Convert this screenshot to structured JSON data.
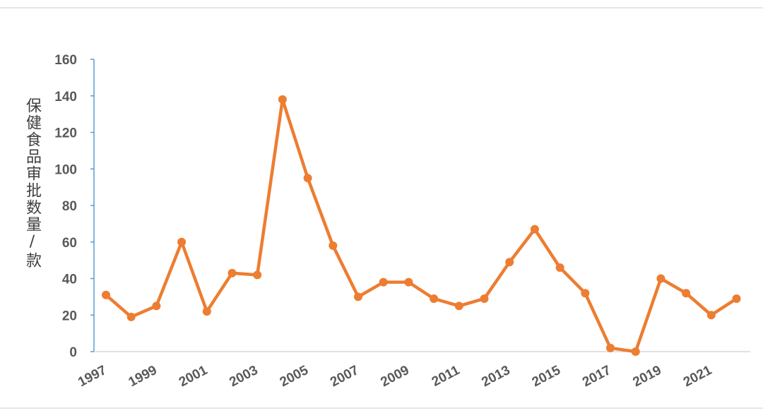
{
  "chart_data": {
    "type": "line",
    "title": "",
    "xlabel": "",
    "ylabel": "保健食品审批数量/款",
    "ylim": [
      0,
      160
    ],
    "yticks": [
      0,
      20,
      40,
      60,
      80,
      100,
      120,
      140,
      160
    ],
    "xticks": [
      "1997",
      "1999",
      "2001",
      "2003",
      "2005",
      "2007",
      "2009",
      "2011",
      "2013",
      "2015",
      "2017",
      "2019",
      "2021"
    ],
    "x": [
      1997,
      1998,
      1999,
      2000,
      2001,
      2002,
      2003,
      2004,
      2005,
      2006,
      2007,
      2008,
      2009,
      2010,
      2011,
      2012,
      2013,
      2014,
      2015,
      2016,
      2017,
      2018,
      2019,
      2020,
      2021,
      2022
    ],
    "series": [
      {
        "values": [
          31,
          19,
          25,
          60,
          22,
          43,
          42,
          138,
          95,
          58,
          30,
          38,
          38,
          29,
          25,
          29,
          49,
          67,
          46,
          32,
          2,
          0,
          40,
          32,
          20,
          29
        ]
      }
    ],
    "colors": {
      "line": "#ED7D31",
      "axis": "#5B9BD5",
      "baseline": "#d9d9d9",
      "tick_text": "#595959"
    },
    "grid": false,
    "legend": "none"
  }
}
